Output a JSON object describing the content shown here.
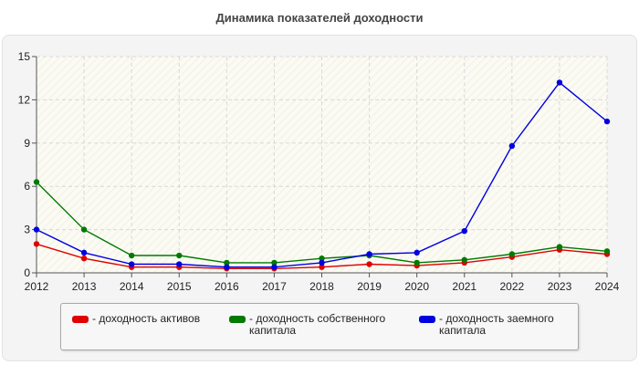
{
  "chart_data": {
    "type": "line",
    "title": "Динамика показателей доходности",
    "xlabel": "",
    "ylabel": "",
    "x": [
      "2012",
      "2013",
      "2014",
      "2015",
      "2016",
      "2017",
      "2018",
      "2019",
      "2020",
      "2021",
      "2022",
      "2023",
      "2024"
    ],
    "ylim": [
      0,
      15
    ],
    "yticks": [
      "0",
      "3",
      "6",
      "9",
      "12",
      "15"
    ],
    "grid": true,
    "legend_position": "bottom",
    "series": [
      {
        "name": "- доходность активов",
        "color": "#e00000",
        "values": [
          2.0,
          1.0,
          0.4,
          0.4,
          0.3,
          0.3,
          0.4,
          0.6,
          0.5,
          0.7,
          1.1,
          1.6,
          1.3
        ]
      },
      {
        "name": "- доходность собственного\nкапитала",
        "color": "#007a00",
        "values": [
          6.3,
          3.0,
          1.2,
          1.2,
          0.7,
          0.7,
          1.0,
          1.2,
          0.7,
          0.9,
          1.3,
          1.8,
          1.5
        ]
      },
      {
        "name": "- доходность заемного\nкапитала",
        "color": "#0000e0",
        "values": [
          3.0,
          1.4,
          0.6,
          0.6,
          0.4,
          0.4,
          0.7,
          1.3,
          1.4,
          2.9,
          8.8,
          13.2,
          10.5
        ]
      }
    ]
  }
}
